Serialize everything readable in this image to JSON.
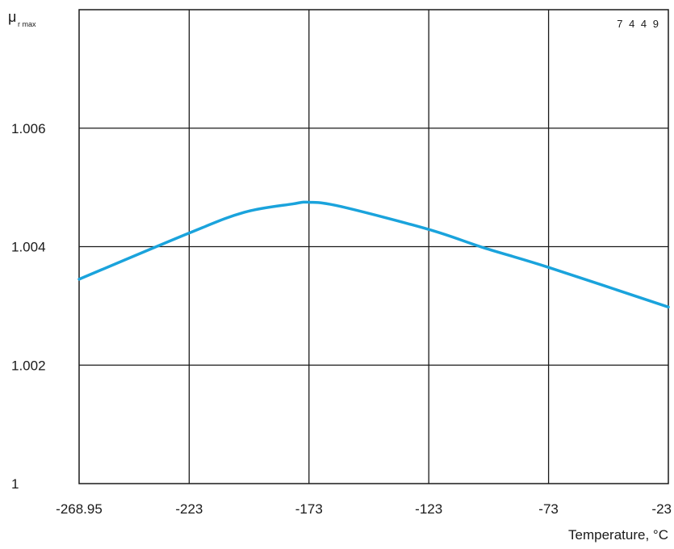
{
  "chart_data": {
    "type": "line",
    "ylabel_main": "μ",
    "ylabel_sub": "r max",
    "xlabel": "Temperature, °C",
    "figure_code": "7 4 4 9",
    "x_ticks": [
      "-268.95",
      "-223",
      "-173",
      "-123",
      "-73",
      "-23"
    ],
    "y_ticks": [
      "1",
      "1.002",
      "1.004",
      "1.006"
    ],
    "xlim": [
      -268.95,
      -23
    ],
    "ylim": [
      1.0,
      1.008
    ],
    "grid": true,
    "series": [
      {
        "color": "#1aa3dc",
        "x": [
          -268.95,
          -223,
          -200,
          -180,
          -173,
          -160,
          -123,
          -100,
          -73,
          -23
        ],
        "y": [
          1.00345,
          1.00423,
          1.00458,
          1.00472,
          1.00475,
          1.00468,
          1.00429,
          1.00398,
          1.00365,
          1.00298
        ]
      }
    ]
  }
}
